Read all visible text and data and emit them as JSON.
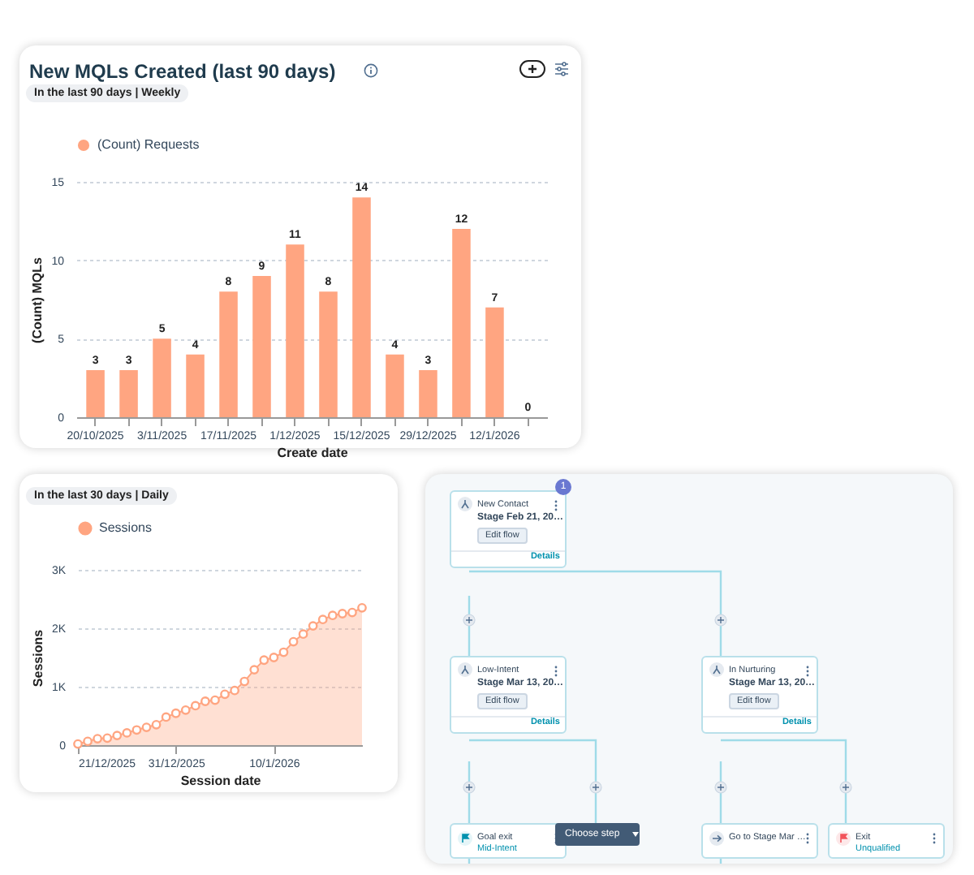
{
  "chart_data": [
    {
      "type": "bar",
      "title": "New MQLs Created (last 90 days)",
      "subtitle": "In the last 90 days | Weekly",
      "xlabel": "Create date",
      "ylabel": "(Count) MQLs",
      "categories": [
        "20/10/2025",
        null,
        "3/11/2025",
        null,
        "17/11/2025",
        null,
        "1/12/2025",
        null,
        "15/12/2025",
        null,
        "29/12/2025",
        null,
        "12/1/2026",
        null
      ],
      "series": [
        {
          "name": "(Count) Requests",
          "color": "#ffa581",
          "values": [
            3,
            3,
            5,
            4,
            8,
            9,
            11,
            8,
            14,
            4,
            3,
            12,
            7,
            0
          ]
        }
      ],
      "ylim": [
        0,
        15
      ],
      "yticks": [
        0,
        5,
        10,
        15
      ],
      "grid": "y",
      "legend": "top left",
      "data_labels": true
    },
    {
      "type": "area",
      "subtitle": "In the last 30 days | Daily",
      "xlabel": "Session date",
      "ylabel": "Sessions",
      "x": [
        "2025-12-21",
        "2025-12-22",
        "2025-12-23",
        "2025-12-24",
        "2025-12-25",
        "2025-12-26",
        "2025-12-27",
        "2025-12-28",
        "2025-12-29",
        "2025-12-30",
        "2025-12-31",
        "2026-01-01",
        "2026-01-02",
        "2026-01-03",
        "2026-01-04",
        "2026-01-05",
        "2026-01-06",
        "2026-01-07",
        "2026-01-08",
        "2026-01-09",
        "2026-01-10",
        "2026-01-11",
        "2026-01-12",
        "2026-01-13",
        "2026-01-14",
        "2026-01-15",
        "2026-01-16",
        "2026-01-17",
        "2026-01-18",
        "2026-01-19"
      ],
      "series": [
        {
          "name": "Sessions",
          "color": "#ffa581",
          "values": [
            20,
            65,
            110,
            120,
            165,
            210,
            260,
            305,
            350,
            480,
            545,
            600,
            675,
            750,
            770,
            870,
            935,
            1090,
            1290,
            1455,
            1500,
            1590,
            1770,
            1900,
            2040,
            2150,
            2220,
            2250,
            2270,
            2350
          ]
        }
      ],
      "xlim": [
        "2025-12-21",
        "2026-01-19"
      ],
      "xticks": [
        {
          "value": "2025-12-21",
          "label": "21/12/2025"
        },
        {
          "value": "2025-12-31",
          "label": "31/12/2025"
        },
        {
          "value": "2026-01-10",
          "label": "10/1/2026"
        }
      ],
      "ylim": [
        0,
        3000
      ],
      "yticks": [
        0,
        {
          "value": 1000,
          "label": "1K"
        },
        {
          "value": 2000,
          "label": "2K"
        },
        {
          "value": 3000,
          "label": "3K"
        }
      ],
      "grid": "y",
      "legend": "top left",
      "marker": "circle"
    },
    {
      "type": "other",
      "annotations": [
        "1",
        "New Contact",
        "Stage Feb 21, 20…",
        "Edit flow",
        "Details",
        "Low-Intent",
        "Stage Mar 13, 20…",
        "Edit flow",
        "Details",
        "In Nurturing",
        "Stage Mar 13, 20…",
        "Edit flow",
        "Details",
        "Goal exit",
        "Mid-Intent",
        "Choose step",
        "Go to Stage Mar …",
        "Exit",
        "Unqualified"
      ]
    }
  ]
}
